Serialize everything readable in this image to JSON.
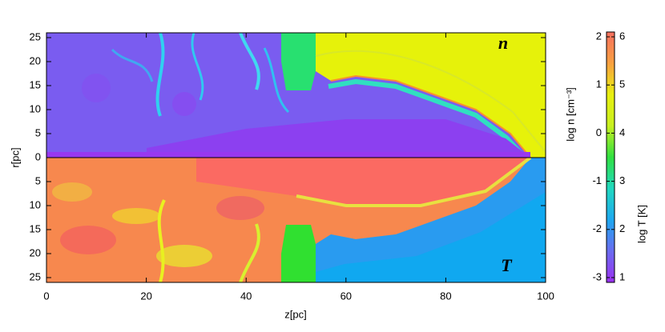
{
  "chart_data": {
    "type": "image",
    "xlabel": "z[pc]",
    "ylabel": "r[pc]",
    "xlim": [
      0,
      100
    ],
    "xticks": [
      0,
      20,
      40,
      60,
      80,
      100
    ],
    "panels": [
      {
        "label": "n",
        "ylim": [
          0,
          26
        ],
        "yticks": [
          0,
          5,
          10,
          15,
          20,
          25
        ],
        "inverted": false
      },
      {
        "label": "T",
        "ylim": [
          0,
          26
        ],
        "yticks": [
          5,
          10,
          15,
          20,
          25
        ],
        "inverted": true
      }
    ],
    "colorbar": {
      "colors": [
        "#9b30f0",
        "#6a6cf0",
        "#1ea8f0",
        "#20d8c0",
        "#30e040",
        "#c8f020",
        "#e8f010",
        "#f8a040",
        "#f87060"
      ],
      "left": {
        "label": "log n [cm⁻³]",
        "lim": [
          -3.1,
          2.1
        ],
        "ticks": [
          -3,
          -2,
          -1,
          0,
          1,
          2
        ]
      },
      "right": {
        "label": "log T [K]",
        "lim": [
          0.9,
          6.1
        ],
        "ticks": [
          1,
          2,
          3,
          4,
          5,
          6
        ]
      }
    }
  }
}
